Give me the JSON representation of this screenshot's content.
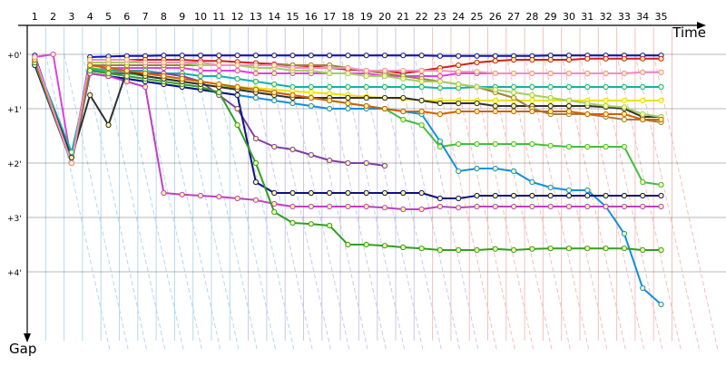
{
  "chart_data": {
    "type": "line",
    "title": "",
    "xlabel": "Time",
    "ylabel": "Gap",
    "x_ticks": [
      "1",
      "2",
      "3",
      "4",
      "5",
      "6",
      "7",
      "8",
      "9",
      "10",
      "11",
      "12",
      "13",
      "14",
      "15",
      "16",
      "17",
      "18",
      "19",
      "20",
      "21",
      "22",
      "23",
      "24",
      "25",
      "26",
      "27",
      "28",
      "29",
      "30",
      "31",
      "32",
      "33",
      "34",
      "35"
    ],
    "y_ticks": [
      "+0'",
      "+1'",
      "+2'",
      "+3'",
      "+4'"
    ],
    "x_range": [
      0,
      35
    ],
    "y_range_minutes": [
      0,
      5.25
    ],
    "grid": true,
    "legend": "none",
    "series": [
      {
        "color": "#1010c0",
        "values": [
          0.02,
          null,
          2.0,
          0.05,
          0.04,
          0.03,
          0.03,
          0.02,
          0.02,
          0.02,
          0.02,
          0.02,
          0.02,
          0.02,
          0.02,
          0.02,
          0.02,
          0.02,
          0.02,
          0.02,
          0.02,
          0.02,
          0.03,
          0.03,
          0.03,
          0.03,
          0.03,
          0.03,
          0.02,
          0.02,
          0.02,
          0.02,
          0.02,
          0.02,
          0.02
        ]
      },
      {
        "color": "#d02020",
        "values": [
          0.05,
          null,
          2.0,
          0.1,
          0.1,
          0.1,
          0.1,
          0.1,
          0.1,
          0.12,
          0.12,
          0.14,
          0.16,
          0.18,
          0.2,
          0.22,
          0.25,
          0.28,
          0.3,
          0.3,
          0.35,
          0.3,
          0.25,
          0.2,
          0.15,
          0.12,
          0.1,
          0.1,
          0.1,
          0.1,
          0.08,
          0.08,
          0.08,
          0.08,
          0.08
        ]
      },
      {
        "color": "#e040e0",
        "values": [
          0.05,
          0.0,
          2.0,
          0.3,
          0.25,
          0.25,
          0.25,
          0.25,
          0.25,
          0.3,
          0.3,
          0.3,
          0.35,
          0.35,
          0.35,
          0.35,
          0.35,
          0.35,
          0.35,
          0.4,
          0.4,
          0.4,
          0.4,
          0.35,
          0.35,
          0.35,
          0.35,
          0.35,
          0.35,
          0.35,
          0.35,
          0.35,
          0.35,
          0.33,
          0.33
        ]
      },
      {
        "color": "#10b0b0",
        "values": [
          0.1,
          null,
          1.8,
          0.3,
          0.3,
          0.3,
          0.3,
          0.35,
          0.35,
          0.4,
          0.4,
          0.45,
          0.5,
          0.55,
          0.6,
          0.6,
          0.6,
          0.6,
          0.6,
          0.6,
          0.6,
          0.6,
          0.62,
          0.62,
          0.6,
          0.6,
          0.6,
          0.6,
          0.6,
          0.6,
          0.6,
          0.6,
          0.6,
          0.6,
          0.6
        ]
      },
      {
        "color": "#f0e000",
        "values": [
          0.1,
          null,
          2.0,
          0.2,
          0.25,
          0.3,
          0.35,
          0.4,
          0.45,
          0.5,
          0.55,
          0.6,
          0.62,
          0.65,
          0.68,
          0.7,
          0.72,
          0.75,
          0.78,
          0.8,
          0.82,
          0.85,
          0.85,
          0.85,
          0.85,
          0.85,
          0.85,
          0.85,
          0.85,
          0.85,
          0.85,
          0.85,
          0.85,
          0.85,
          0.85
        ]
      },
      {
        "color": "#40c040",
        "values": [
          0.15,
          null,
          2.0,
          0.25,
          0.3,
          0.35,
          0.4,
          0.45,
          0.5,
          0.55,
          0.6,
          0.62,
          0.65,
          0.7,
          0.75,
          0.8,
          0.85,
          0.9,
          0.95,
          1.0,
          1.2,
          1.3,
          1.7,
          1.65,
          1.65,
          1.65,
          1.65,
          1.65,
          1.68,
          1.7,
          1.7,
          1.7,
          1.7,
          2.35,
          2.4
        ]
      },
      {
        "color": "#1090e0",
        "values": [
          0.15,
          null,
          2.0,
          0.35,
          0.4,
          0.45,
          0.5,
          0.55,
          0.6,
          0.65,
          0.7,
          0.75,
          0.8,
          0.85,
          0.9,
          0.95,
          1.0,
          1.0,
          1.0,
          1.0,
          1.05,
          1.1,
          1.6,
          2.15,
          2.1,
          2.1,
          2.15,
          2.35,
          2.45,
          2.5,
          2.5,
          2.8,
          3.3,
          4.3,
          4.6
        ]
      },
      {
        "color": "#8040a0",
        "values": [
          0.15,
          null,
          2.0,
          0.3,
          0.35,
          0.35,
          0.35,
          0.35,
          0.4,
          0.5,
          0.75,
          1.0,
          1.55,
          1.7,
          1.75,
          1.85,
          1.95,
          2.0,
          2.0,
          2.05
        ]
      },
      {
        "color": "#101080",
        "values": [
          0.2,
          null,
          2.0,
          0.35,
          0.4,
          0.45,
          0.5,
          0.55,
          0.6,
          0.65,
          0.7,
          0.75,
          2.35,
          2.55,
          2.55,
          2.55,
          2.55,
          2.55,
          2.55,
          2.55,
          2.55,
          2.55,
          2.65,
          2.65,
          2.6,
          2.6,
          2.6,
          2.6,
          2.6,
          2.6,
          2.6,
          2.6,
          2.6,
          2.6,
          2.6
        ]
      },
      {
        "color": "#c040c0",
        "values": [
          0.1,
          null,
          2.0,
          0.35,
          0.4,
          0.5,
          0.6,
          2.55,
          2.58,
          2.6,
          2.62,
          2.65,
          2.68,
          2.75,
          2.8,
          2.8,
          2.8,
          2.8,
          2.8,
          2.82,
          2.85,
          2.85,
          2.8,
          2.82,
          2.8,
          2.8,
          2.8,
          2.8,
          2.8,
          2.8,
          2.8,
          2.8,
          2.8,
          2.8,
          2.8
        ]
      },
      {
        "color": "#30a020",
        "values": [
          0.15,
          null,
          2.0,
          0.3,
          0.35,
          0.4,
          0.45,
          0.5,
          0.55,
          0.6,
          0.7,
          1.3,
          2.0,
          2.9,
          3.1,
          3.12,
          3.15,
          3.5,
          3.5,
          3.52,
          3.55,
          3.57,
          3.6,
          3.6,
          3.6,
          3.58,
          3.6,
          3.58,
          3.57,
          3.57,
          3.57,
          3.57,
          3.57,
          3.6,
          3.6
        ]
      },
      {
        "color": "#303030",
        "values": [
          0.1,
          null,
          1.9,
          0.75,
          1.3,
          0.3,
          0.4,
          0.45,
          0.5,
          0.55,
          0.6,
          0.65,
          0.7,
          0.75,
          0.8,
          0.8,
          0.8,
          0.8,
          0.8,
          0.8,
          0.8,
          0.85,
          0.9,
          0.9,
          0.9,
          0.95,
          0.95,
          0.95,
          0.95,
          0.95,
          0.95,
          0.97,
          1.0,
          1.15,
          1.15
        ]
      },
      {
        "color": "#a08040",
        "values": [
          0.1,
          null,
          2.0,
          0.2,
          0.2,
          0.2,
          0.2,
          0.2,
          0.2,
          0.2,
          0.2,
          0.2,
          0.2,
          0.2,
          0.2,
          0.2,
          0.2,
          0.25,
          0.3,
          0.35,
          0.4,
          0.45,
          0.5,
          0.55,
          0.6,
          0.7,
          0.8,
          1.0,
          1.1,
          1.1,
          1.1,
          1.15,
          1.2,
          1.2,
          1.25
        ]
      },
      {
        "color": "#a0d060",
        "values": [
          0.1,
          null,
          2.0,
          0.15,
          0.15,
          0.15,
          0.15,
          0.15,
          0.15,
          0.2,
          0.2,
          0.2,
          0.25,
          0.25,
          0.3,
          0.3,
          0.35,
          0.35,
          0.4,
          0.4,
          0.45,
          0.5,
          0.5,
          0.55,
          0.6,
          0.65,
          0.7,
          0.75,
          0.8,
          0.85,
          0.9,
          0.95,
          0.97,
          1.1,
          1.15
        ]
      },
      {
        "color": "#d06000",
        "values": [
          0.1,
          null,
          2.0,
          0.2,
          0.25,
          0.3,
          0.35,
          0.4,
          0.45,
          0.5,
          0.55,
          0.6,
          0.65,
          0.7,
          0.75,
          0.8,
          0.85,
          0.9,
          0.95,
          1.0,
          1.05,
          1.05,
          1.1,
          1.05,
          1.05,
          1.05,
          1.05,
          1.05,
          1.05,
          1.05,
          1.1,
          1.1,
          1.1,
          1.2,
          1.2
        ]
      },
      {
        "color": "#f090c0",
        "values": [
          0.05,
          null,
          2.0,
          0.1,
          0.1,
          0.1,
          0.15,
          0.15,
          0.15,
          0.15,
          0.2,
          0.2,
          0.2,
          0.2,
          0.25,
          0.25,
          0.25,
          0.25,
          0.3,
          0.3,
          0.3,
          0.3,
          0.3,
          0.32,
          0.32,
          0.35,
          0.35,
          0.35,
          0.35,
          0.35,
          0.35,
          0.35,
          0.35,
          0.33,
          0.33
        ]
      }
    ]
  }
}
